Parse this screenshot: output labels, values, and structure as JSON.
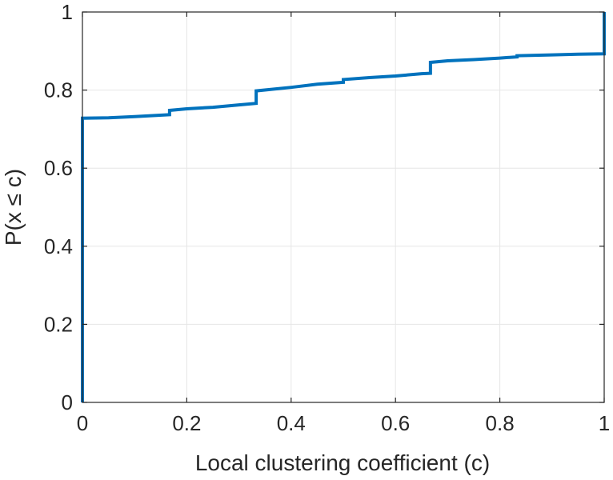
{
  "chart_data": {
    "type": "line",
    "title": "",
    "xlabel": "Local clustering coefficient (c)",
    "ylabel": "P(x ≤ c)",
    "xlim": [
      0,
      1
    ],
    "ylim": [
      0,
      1
    ],
    "xticks": [
      0,
      0.2,
      0.4,
      0.6,
      0.8,
      1
    ],
    "yticks": [
      0,
      0.2,
      0.4,
      0.6,
      0.8,
      1
    ],
    "xtick_labels": [
      "0",
      "0.2",
      "0.4",
      "0.6",
      "0.8",
      "1"
    ],
    "ytick_labels": [
      "0",
      "0.2",
      "0.4",
      "0.6",
      "0.8",
      "1"
    ],
    "grid": true,
    "step": true,
    "series": [
      {
        "color": "#0072bd",
        "x": [
          0,
          0,
          0.05,
          0.1,
          0.167,
          0.167,
          0.2,
          0.25,
          0.3,
          0.333,
          0.333,
          0.4,
          0.45,
          0.5,
          0.5,
          0.55,
          0.6,
          0.65,
          0.667,
          0.667,
          0.7,
          0.75,
          0.8,
          0.833,
          0.833,
          0.9,
          0.95,
          1,
          1
        ],
        "y": [
          0,
          0.728,
          0.729,
          0.732,
          0.737,
          0.748,
          0.752,
          0.756,
          0.762,
          0.766,
          0.798,
          0.807,
          0.815,
          0.82,
          0.827,
          0.832,
          0.836,
          0.842,
          0.843,
          0.871,
          0.875,
          0.878,
          0.882,
          0.885,
          0.888,
          0.89,
          0.892,
          0.893,
          1
        ]
      }
    ]
  }
}
